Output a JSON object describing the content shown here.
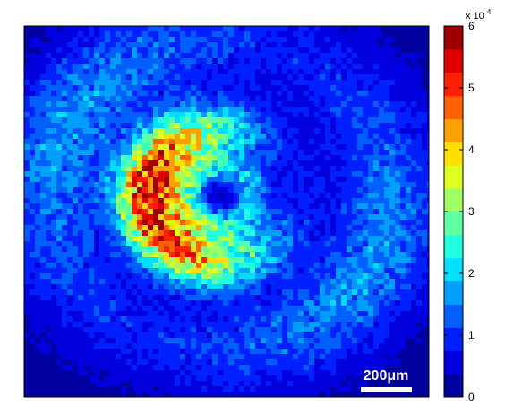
{
  "chart_data": {
    "type": "heatmap",
    "title": "",
    "xlabel": "",
    "ylabel": "",
    "colormap": "jet",
    "colorbar": {
      "min": 0,
      "max": 60000,
      "ticks": [
        0,
        1,
        2,
        3,
        4,
        5,
        6
      ],
      "tick_labels": [
        "0",
        "1",
        "2",
        "3",
        "4",
        "5",
        "6"
      ],
      "multiplier_label": "x 10",
      "multiplier_exponent": "4",
      "levels": 16
    },
    "scale_bar": {
      "label": "200μm"
    },
    "structure": {
      "description": "ring-shaped intensity pattern with hollow center and outer cyan halo",
      "inner_hole_value": 15000,
      "ring_peak_value": 52000,
      "dark_gap_value": 2000,
      "outer_halo_value": 14000,
      "background_value": 2000
    },
    "colors": {
      "dark_blue": "#00008f",
      "cyan": "#00ffff",
      "yellow": "#ffff00",
      "red": "#ff0000",
      "dark_red": "#800000"
    }
  }
}
